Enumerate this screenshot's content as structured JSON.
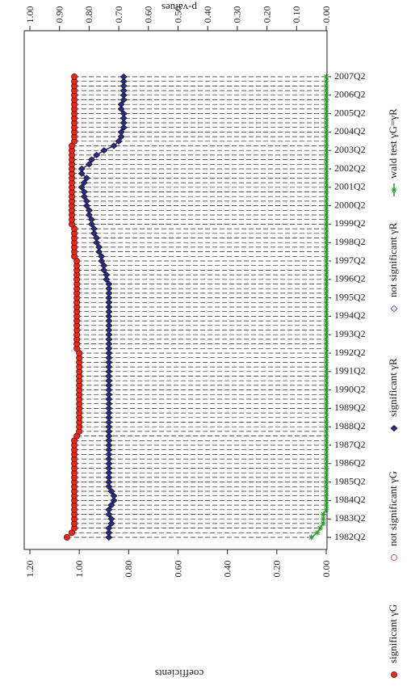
{
  "chart_data": {
    "type": "line",
    "y_label": "coefficients",
    "y2_label": "p-values",
    "categories": [
      "1982Q2",
      null,
      null,
      null,
      "1983Q2",
      null,
      null,
      null,
      "1984Q2",
      null,
      null,
      null,
      "1985Q2",
      null,
      null,
      null,
      "1986Q2",
      null,
      null,
      null,
      "1987Q2",
      null,
      null,
      null,
      "1988Q2",
      null,
      null,
      null,
      "1989Q2",
      null,
      null,
      null,
      "1990Q2",
      null,
      null,
      null,
      "1991Q2",
      null,
      null,
      null,
      "1992Q2",
      null,
      null,
      null,
      "1993Q2",
      null,
      null,
      null,
      "1994Q2",
      null,
      null,
      null,
      "1995Q2",
      null,
      null,
      null,
      "1996Q2",
      null,
      null,
      null,
      "1997Q2",
      null,
      null,
      null,
      "1998Q2",
      null,
      null,
      null,
      "1999Q2",
      null,
      null,
      null,
      "2000Q2",
      null,
      null,
      null,
      "2001Q2",
      null,
      null,
      null,
      "2002Q2",
      null,
      null,
      null,
      "2003Q2",
      null,
      null,
      null,
      "2004Q2",
      null,
      null,
      null,
      "2005Q2",
      null,
      null,
      null,
      "2006Q2",
      null,
      null,
      null,
      "2007Q2"
    ],
    "ylim": [
      0,
      1.2
    ],
    "yticks": [
      {
        "value": 0,
        "label": "0.00"
      },
      {
        "value": 0.2,
        "label": "0.20"
      },
      {
        "value": 0.4,
        "label": "0.40"
      },
      {
        "value": 0.6,
        "label": "0.60"
      },
      {
        "value": 0.8,
        "label": "0.80"
      },
      {
        "value": 1,
        "label": "1.00"
      },
      {
        "value": 1.2,
        "label": "1.20"
      }
    ],
    "y2lim": [
      0,
      1
    ],
    "y2ticks": [
      {
        "value": 0,
        "label": "0.00"
      },
      {
        "value": 0.1,
        "label": "0.10"
      },
      {
        "value": 0.2,
        "label": "0.20"
      },
      {
        "value": 0.3,
        "label": "0.30"
      },
      {
        "value": 0.4,
        "label": "0.40"
      },
      {
        "value": 0.5,
        "label": "0.50"
      },
      {
        "value": 0.6,
        "label": "0.60"
      },
      {
        "value": 0.7,
        "label": "0.70"
      },
      {
        "value": 0.8,
        "label": "0.80"
      },
      {
        "value": 0.9,
        "label": "0.90"
      },
      {
        "value": 1,
        "label": "1.00"
      }
    ],
    "series": [
      {
        "name": "significant γG",
        "color": "#e8291c",
        "marker": "circle",
        "values": [
          1.05,
          1.03,
          1.02,
          1.02,
          1.02,
          1.02,
          1.02,
          1.02,
          1.02,
          1.02,
          1.02,
          1.02,
          1.02,
          1.02,
          1.02,
          1.02,
          1.02,
          1.02,
          1.02,
          1.02,
          1.02,
          1.02,
          1.01,
          1.0,
          1.0,
          1.0,
          1.0,
          1.0,
          1.0,
          1.0,
          1.0,
          1.0,
          1.0,
          1.0,
          1.0,
          1.0,
          1.0,
          1.0,
          1.0,
          1.0,
          1.0,
          1.01,
          1.01,
          1.01,
          1.01,
          1.01,
          1.01,
          1.01,
          1.01,
          1.01,
          1.01,
          1.01,
          1.01,
          1.01,
          1.01,
          1.01,
          1.01,
          1.01,
          1.01,
          1.01,
          1.01,
          1.02,
          1.02,
          1.02,
          1.02,
          1.02,
          1.02,
          1.02,
          1.03,
          1.03,
          1.03,
          1.03,
          1.03,
          1.03,
          1.03,
          1.03,
          1.03,
          1.03,
          1.03,
          1.03,
          1.03,
          1.03,
          1.03,
          1.03,
          1.03,
          1.03,
          1.02,
          1.02,
          1.02,
          1.02,
          1.02,
          1.02,
          1.02,
          1.02,
          1.02,
          1.02,
          1.02,
          1.02,
          1.02,
          1.02,
          1.02
        ]
      },
      {
        "name": "not significant γG",
        "color": "#e8291c",
        "marker": "open-circle",
        "values": [
          null,
          null,
          null,
          null,
          null,
          null,
          null,
          null,
          null,
          null,
          null,
          null,
          null,
          null,
          null,
          null,
          null,
          null,
          null,
          null,
          null,
          null,
          null,
          null,
          null,
          null,
          null,
          null,
          null,
          null,
          null,
          null,
          null,
          null,
          null,
          null,
          null,
          null,
          null,
          null,
          null,
          null,
          null,
          null,
          null,
          null,
          null,
          null,
          null,
          null,
          null,
          null,
          null,
          null,
          null,
          null,
          null,
          null,
          null,
          null,
          null,
          null,
          null,
          null,
          null,
          null,
          null,
          null,
          null,
          null,
          null,
          null,
          null,
          null,
          null,
          null,
          null,
          null,
          null,
          null,
          null,
          null,
          null,
          null,
          null,
          null,
          null,
          null,
          null,
          null,
          null,
          null,
          null,
          null,
          null,
          null,
          null,
          null,
          null,
          null,
          null
        ]
      },
      {
        "name": "significant γR",
        "color": "#2b2a8c",
        "marker": "diamond",
        "values": [
          0.88,
          0.88,
          0.88,
          0.87,
          0.87,
          0.88,
          0.88,
          0.87,
          0.86,
          0.86,
          0.87,
          0.88,
          0.88,
          0.88,
          0.88,
          0.88,
          0.88,
          0.88,
          0.88,
          0.88,
          0.88,
          0.88,
          0.88,
          0.88,
          0.88,
          0.88,
          0.88,
          0.88,
          0.88,
          0.88,
          0.88,
          0.88,
          0.88,
          0.88,
          0.88,
          0.88,
          0.88,
          0.88,
          0.88,
          0.88,
          0.88,
          0.88,
          0.88,
          0.88,
          0.88,
          0.88,
          0.88,
          0.88,
          0.88,
          0.88,
          0.88,
          0.88,
          0.88,
          0.88,
          0.88,
          0.88,
          0.89,
          0.89,
          0.9,
          0.9,
          0.91,
          0.91,
          0.92,
          0.92,
          0.93,
          0.93,
          0.94,
          0.94,
          0.95,
          0.95,
          0.96,
          0.96,
          0.97,
          0.97,
          0.98,
          0.98,
          0.99,
          0.98,
          0.97,
          0.99,
          0.99,
          0.96,
          0.95,
          0.93,
          0.9,
          0.86,
          0.84,
          0.83,
          0.83,
          0.82,
          0.82,
          0.82,
          0.82,
          0.83,
          0.83,
          0.82,
          0.82,
          0.82,
          0.82,
          0.82,
          0.82
        ]
      },
      {
        "name": "not significant γR",
        "color": "#2b2a8c",
        "marker": "open-diamond",
        "values": [
          null,
          null,
          null,
          null,
          null,
          null,
          null,
          null,
          null,
          null,
          null,
          null,
          null,
          null,
          null,
          null,
          null,
          null,
          null,
          null,
          null,
          null,
          null,
          null,
          null,
          null,
          null,
          null,
          null,
          null,
          null,
          null,
          null,
          null,
          null,
          null,
          null,
          null,
          null,
          null,
          null,
          null,
          null,
          null,
          null,
          null,
          null,
          null,
          null,
          null,
          null,
          null,
          null,
          null,
          null,
          null,
          null,
          null,
          null,
          null,
          null,
          null,
          null,
          null,
          null,
          null,
          null,
          null,
          null,
          null,
          null,
          null,
          null,
          null,
          null,
          null,
          null,
          null,
          null,
          null,
          null,
          null,
          null,
          null,
          null,
          null,
          null,
          null,
          null,
          null,
          null,
          null,
          null,
          null,
          null,
          null,
          null,
          null,
          null,
          null,
          null
        ]
      },
      {
        "name": "wald test γG=γR",
        "color": "#2e9a2e",
        "marker": "star",
        "axis": "y2",
        "values": [
          0.05,
          0.03,
          0.02,
          0.01,
          0.01,
          0.01,
          0,
          0,
          0,
          0,
          0,
          0,
          0,
          0,
          0,
          0,
          0,
          0,
          0,
          0,
          0,
          0,
          0,
          0,
          0,
          0,
          0,
          0,
          0,
          0,
          0,
          0,
          0,
          0,
          0,
          0,
          0,
          0,
          0,
          0,
          0,
          0,
          0,
          0,
          0,
          0,
          0,
          0,
          0,
          0,
          0,
          0,
          0,
          0,
          0,
          0,
          0,
          0,
          0,
          0,
          0,
          0,
          0,
          0,
          0,
          0,
          0,
          0,
          0,
          0,
          0,
          0,
          0,
          0,
          0,
          0,
          0,
          0,
          0,
          0,
          0,
          0,
          0,
          0,
          0,
          0,
          0,
          0,
          0,
          0,
          0,
          0,
          0,
          0,
          0,
          0,
          0,
          0,
          0,
          0,
          0
        ]
      }
    ]
  }
}
